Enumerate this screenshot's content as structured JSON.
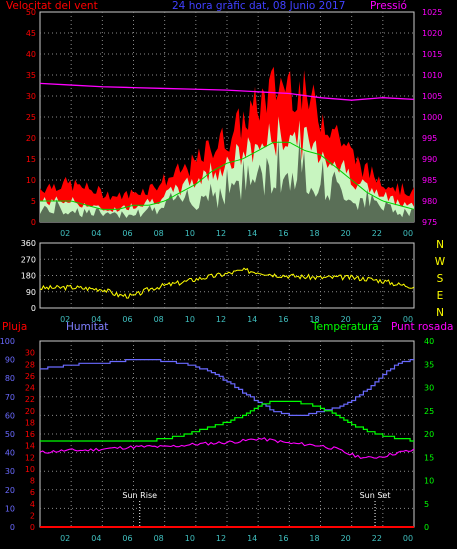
{
  "colors": {
    "background": "#000000",
    "grid": "#ffffff",
    "red": "#ff0000",
    "gust_red": "#ff0000",
    "avg_white": "#ffffff",
    "fill_green": "#c8f5c0",
    "avg_green": "#00d000",
    "magenta": "#ff00ff",
    "blue": "#6a6aff",
    "yellow": "#ffff00",
    "green": "#00ff00",
    "cyan_axis": "#40c0c0",
    "pink": "#ff00ff"
  },
  "chart_data": [
    {
      "type": "area",
      "title": "24 hora gràfic dat, 08 Junio 2017",
      "left_label": "Velocitat del vent",
      "right_label": "Pressió",
      "x_ticks": [
        "02",
        "04",
        "06",
        "08",
        "10",
        "12",
        "14",
        "16",
        "18",
        "20",
        "22",
        "00"
      ],
      "y_left_ticks": [
        0,
        5,
        10,
        15,
        20,
        25,
        30,
        35,
        40,
        45,
        50
      ],
      "y_left_range": [
        0,
        50
      ],
      "y_right_ticks": [
        975,
        980,
        985,
        990,
        995,
        1000,
        1005,
        1010,
        1015,
        1020,
        1025
      ],
      "y_right_range": [
        975,
        1025
      ],
      "x_range_hours": [
        0,
        24
      ],
      "series": [
        {
          "name": "gust",
          "x": [
            0,
            1,
            2,
            3,
            4,
            5,
            6,
            7,
            8,
            9,
            10,
            11,
            12,
            13,
            14,
            15,
            16,
            17,
            18,
            19,
            20,
            21,
            22,
            23,
            24
          ],
          "values": [
            8,
            9,
            9,
            8,
            7,
            6,
            7,
            8,
            10,
            12,
            14,
            18,
            20,
            24,
            28,
            32,
            34,
            30,
            26,
            22,
            16,
            12,
            10,
            8,
            7
          ]
        },
        {
          "name": "wind",
          "x": [
            0,
            1,
            2,
            3,
            4,
            5,
            6,
            7,
            8,
            9,
            10,
            11,
            12,
            13,
            14,
            15,
            16,
            17,
            18,
            19,
            20,
            21,
            22,
            23,
            24
          ],
          "values": [
            5,
            5,
            5,
            4,
            3,
            3,
            4,
            5,
            6,
            8,
            10,
            12,
            14,
            16,
            18,
            20,
            21,
            19,
            17,
            14,
            11,
            8,
            6,
            5,
            4
          ]
        },
        {
          "name": "avg",
          "x": [
            0,
            1,
            2,
            3,
            4,
            5,
            6,
            7,
            8,
            9,
            10,
            11,
            12,
            13,
            14,
            15,
            16,
            17,
            18,
            19,
            20,
            21,
            22,
            23,
            24
          ],
          "values": [
            5,
            5,
            5,
            4,
            3,
            3,
            4,
            4,
            5,
            7,
            9,
            12,
            14,
            15,
            17,
            19,
            19,
            17,
            16,
            13,
            10,
            7,
            5,
            4,
            3
          ]
        },
        {
          "name": "pressure",
          "x": [
            0,
            2,
            4,
            6,
            8,
            10,
            12,
            14,
            16,
            18,
            20,
            22,
            24
          ],
          "values": [
            1008,
            1007.6,
            1007.2,
            1007,
            1006.8,
            1006.6,
            1006.4,
            1006,
            1005.6,
            1004.6,
            1004,
            1004.6,
            1004.2
          ]
        }
      ]
    },
    {
      "type": "line",
      "right_labels": [
        "N",
        "W",
        "S",
        "E",
        "N"
      ],
      "x_ticks": [
        "02",
        "04",
        "06",
        "08",
        "10",
        "12",
        "14",
        "16",
        "18",
        "20",
        "22",
        "00"
      ],
      "y_ticks": [
        0,
        90,
        180,
        270,
        360
      ],
      "y_range": [
        0,
        360
      ],
      "series": [
        {
          "name": "direction",
          "x": [
            0,
            1,
            2,
            3,
            4,
            5,
            6,
            7,
            8,
            9,
            10,
            11,
            12,
            13,
            14,
            15,
            16,
            17,
            18,
            19,
            20,
            21,
            22,
            23,
            24
          ],
          "values": [
            110,
            112,
            115,
            108,
            105,
            72,
            65,
            105,
            125,
            140,
            160,
            175,
            190,
            208,
            200,
            185,
            178,
            172,
            168,
            170,
            168,
            162,
            150,
            130,
            120
          ]
        }
      ]
    },
    {
      "type": "line",
      "left_label": "Pluja",
      "mid_label": "Humitat",
      "right_label": "Temperatura",
      "far_right_label": "Punt rosada",
      "x_ticks": [
        "02",
        "04",
        "06",
        "08",
        "10",
        "12",
        "14",
        "16",
        "18",
        "20",
        "22",
        "00"
      ],
      "y_pluja_ticks": [
        0,
        2,
        4,
        6,
        8,
        10,
        12,
        14,
        16,
        18,
        20,
        22,
        24,
        26,
        28,
        30
      ],
      "y_humitat_ticks": [
        0,
        10,
        20,
        30,
        40,
        50,
        60,
        70,
        80,
        90,
        100
      ],
      "y_temp_ticks": [
        0,
        5,
        10,
        15,
        20,
        25,
        30,
        35,
        40
      ],
      "y_humitat_range": [
        0,
        100
      ],
      "y_temp_range": [
        0,
        40
      ],
      "annotations": [
        "Sun Rise",
        "Sun Set"
      ],
      "series": [
        {
          "name": "humitat",
          "x": [
            0,
            1,
            2,
            3,
            4,
            5,
            6,
            7,
            8,
            9,
            10,
            11,
            12,
            13,
            14,
            15,
            16,
            17,
            18,
            19,
            20,
            21,
            22,
            23,
            24
          ],
          "values": [
            85,
            86,
            87,
            88,
            88,
            89,
            90,
            90,
            89,
            88,
            86,
            83,
            78,
            72,
            67,
            62,
            60,
            60,
            62,
            64,
            68,
            74,
            82,
            88,
            90
          ]
        },
        {
          "name": "temperatura",
          "x": [
            0,
            1,
            2,
            3,
            4,
            5,
            6,
            7,
            8,
            9,
            10,
            11,
            12,
            13,
            14,
            15,
            16,
            17,
            18,
            19,
            20,
            21,
            22,
            23,
            24
          ],
          "values": [
            18.5,
            18.5,
            18.5,
            18.5,
            18.5,
            18.5,
            18.5,
            18.5,
            19,
            19.5,
            20.5,
            21.5,
            22.5,
            24,
            26,
            27,
            27,
            26.5,
            25.5,
            24,
            22,
            20.5,
            19.5,
            19,
            18.5
          ]
        },
        {
          "name": "punt_rosada",
          "x": [
            0,
            1,
            2,
            3,
            4,
            5,
            6,
            7,
            8,
            9,
            10,
            11,
            12,
            13,
            14,
            15,
            16,
            17,
            18,
            19,
            20,
            21,
            22,
            23,
            24
          ],
          "values": [
            16,
            16.3,
            16.5,
            16.5,
            16.8,
            17,
            17.2,
            17.3,
            17.2,
            17.5,
            17.8,
            18,
            18.2,
            18.5,
            19,
            18.6,
            18,
            17.8,
            17.5,
            16.8,
            15.5,
            14.8,
            15.2,
            16,
            16.5
          ]
        },
        {
          "name": "pluja",
          "x": [
            0,
            24
          ],
          "values": [
            0,
            0
          ]
        }
      ]
    }
  ]
}
